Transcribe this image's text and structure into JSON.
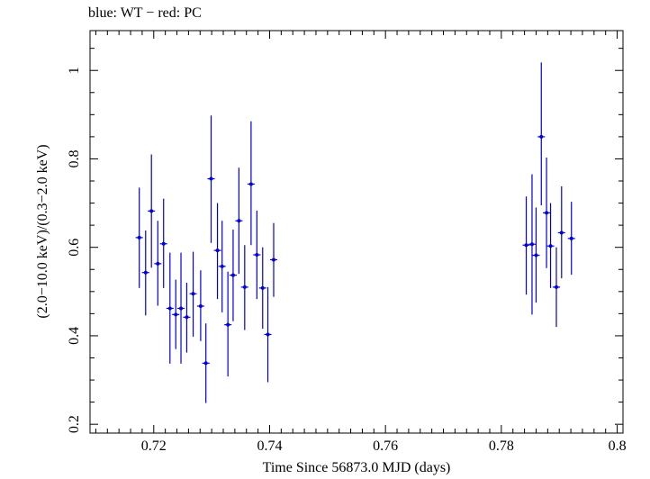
{
  "chart_data": {
    "type": "scatter",
    "title": "blue: WT − red: PC",
    "xlabel": "Time Since 56873.0 MJD (days)",
    "ylabel": "(2.0−10.0 keV)/(0.3−2.0 keV)",
    "xlim": [
      0.709,
      0.801
    ],
    "ylim": [
      0.18,
      1.09
    ],
    "x_ticks": [
      0.72,
      0.74,
      0.76,
      0.78,
      0.8
    ],
    "x_tick_labels": [
      "0.72",
      "0.74",
      "0.76",
      "0.78",
      "0.8"
    ],
    "y_ticks": [
      0.2,
      0.4,
      0.6,
      0.8,
      1.0
    ],
    "y_tick_labels": [
      "0.2",
      "0.4",
      "0.6",
      "0.8",
      "1"
    ],
    "grid": false,
    "series": [
      {
        "name": "WT",
        "color": "#0000dd",
        "points": [
          {
            "x": 0.7175,
            "y": 0.622,
            "ylo": 0.508,
            "yhi": 0.735
          },
          {
            "x": 0.7186,
            "y": 0.543,
            "ylo": 0.446,
            "yhi": 0.638
          },
          {
            "x": 0.7196,
            "y": 0.682,
            "ylo": 0.554,
            "yhi": 0.81
          },
          {
            "x": 0.7207,
            "y": 0.563,
            "ylo": 0.468,
            "yhi": 0.66
          },
          {
            "x": 0.7217,
            "y": 0.608,
            "ylo": 0.508,
            "yhi": 0.71
          },
          {
            "x": 0.7228,
            "y": 0.462,
            "ylo": 0.337,
            "yhi": 0.588
          },
          {
            "x": 0.7238,
            "y": 0.448,
            "ylo": 0.37,
            "yhi": 0.527
          },
          {
            "x": 0.7247,
            "y": 0.462,
            "ylo": 0.337,
            "yhi": 0.588
          },
          {
            "x": 0.7257,
            "y": 0.442,
            "ylo": 0.362,
            "yhi": 0.52
          },
          {
            "x": 0.7268,
            "y": 0.495,
            "ylo": 0.398,
            "yhi": 0.59
          },
          {
            "x": 0.7281,
            "y": 0.467,
            "ylo": 0.388,
            "yhi": 0.548
          },
          {
            "x": 0.729,
            "y": 0.338,
            "ylo": 0.248,
            "yhi": 0.428
          },
          {
            "x": 0.7299,
            "y": 0.755,
            "ylo": 0.61,
            "yhi": 0.898
          },
          {
            "x": 0.731,
            "y": 0.593,
            "ylo": 0.483,
            "yhi": 0.7
          },
          {
            "x": 0.7318,
            "y": 0.557,
            "ylo": 0.453,
            "yhi": 0.66
          },
          {
            "x": 0.7328,
            "y": 0.425,
            "ylo": 0.308,
            "yhi": 0.545
          },
          {
            "x": 0.7337,
            "y": 0.537,
            "ylo": 0.433,
            "yhi": 0.64
          },
          {
            "x": 0.7347,
            "y": 0.66,
            "ylo": 0.54,
            "yhi": 0.78
          },
          {
            "x": 0.7357,
            "y": 0.51,
            "ylo": 0.413,
            "yhi": 0.605
          },
          {
            "x": 0.7368,
            "y": 0.743,
            "ylo": 0.605,
            "yhi": 0.885
          },
          {
            "x": 0.7378,
            "y": 0.583,
            "ylo": 0.483,
            "yhi": 0.683
          },
          {
            "x": 0.7388,
            "y": 0.508,
            "ylo": 0.416,
            "yhi": 0.6
          },
          {
            "x": 0.7397,
            "y": 0.403,
            "ylo": 0.295,
            "yhi": 0.51
          },
          {
            "x": 0.7407,
            "y": 0.572,
            "ylo": 0.488,
            "yhi": 0.655
          },
          {
            "x": 0.7843,
            "y": 0.605,
            "ylo": 0.493,
            "yhi": 0.715
          },
          {
            "x": 0.7853,
            "y": 0.607,
            "ylo": 0.448,
            "yhi": 0.765
          },
          {
            "x": 0.786,
            "y": 0.582,
            "ylo": 0.475,
            "yhi": 0.69
          },
          {
            "x": 0.7869,
            "y": 0.85,
            "ylo": 0.695,
            "yhi": 1.018
          },
          {
            "x": 0.7878,
            "y": 0.678,
            "ylo": 0.553,
            "yhi": 0.803
          },
          {
            "x": 0.7885,
            "y": 0.603,
            "ylo": 0.508,
            "yhi": 0.7
          },
          {
            "x": 0.7895,
            "y": 0.51,
            "ylo": 0.42,
            "yhi": 0.6
          },
          {
            "x": 0.7904,
            "y": 0.633,
            "ylo": 0.53,
            "yhi": 0.738
          },
          {
            "x": 0.7921,
            "y": 0.62,
            "ylo": 0.538,
            "yhi": 0.703
          }
        ]
      }
    ]
  }
}
